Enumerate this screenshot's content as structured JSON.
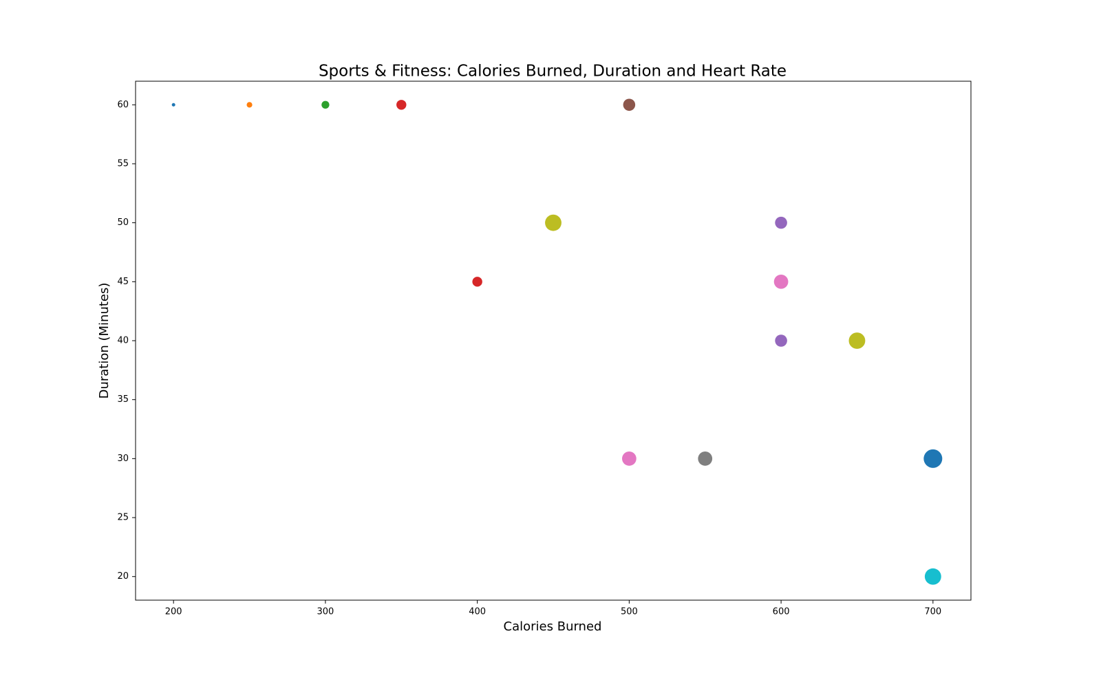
{
  "chart_data": {
    "type": "scatter",
    "title": "Sports & Fitness: Calories Burned, Duration and Heart Rate",
    "xlabel": "Calories Burned",
    "ylabel": "Duration (Minutes)",
    "xlim": [
      175,
      725
    ],
    "ylim": [
      18,
      62
    ],
    "x_ticks": [
      200,
      300,
      400,
      500,
      600,
      700
    ],
    "y_ticks": [
      20,
      25,
      30,
      35,
      40,
      45,
      50,
      55,
      60
    ],
    "grid": false,
    "size_encoding": "Heart Rate (relative)",
    "points": [
      {
        "x": 200,
        "y": 60,
        "size": 1,
        "color": "#1f77b4"
      },
      {
        "x": 250,
        "y": 60,
        "size": 2,
        "color": "#ff7f0e"
      },
      {
        "x": 300,
        "y": 60,
        "size": 3,
        "color": "#2ca02c"
      },
      {
        "x": 350,
        "y": 60,
        "size": 4,
        "color": "#d62728"
      },
      {
        "x": 400,
        "y": 45,
        "size": 4,
        "color": "#d62728"
      },
      {
        "x": 450,
        "y": 50,
        "size": 7,
        "color": "#bcbd22"
      },
      {
        "x": 500,
        "y": 60,
        "size": 5,
        "color": "#8c564b"
      },
      {
        "x": 500,
        "y": 30,
        "size": 6,
        "color": "#e377c2"
      },
      {
        "x": 550,
        "y": 30,
        "size": 6,
        "color": "#7f7f7f"
      },
      {
        "x": 600,
        "y": 50,
        "size": 5,
        "color": "#9467bd"
      },
      {
        "x": 600,
        "y": 45,
        "size": 6,
        "color": "#e377c2"
      },
      {
        "x": 600,
        "y": 40,
        "size": 5,
        "color": "#9467bd"
      },
      {
        "x": 650,
        "y": 40,
        "size": 7,
        "color": "#bcbd22"
      },
      {
        "x": 700,
        "y": 30,
        "size": 8,
        "color": "#1f77b4"
      },
      {
        "x": 700,
        "y": 20,
        "size": 7,
        "color": "#17becf"
      }
    ]
  }
}
